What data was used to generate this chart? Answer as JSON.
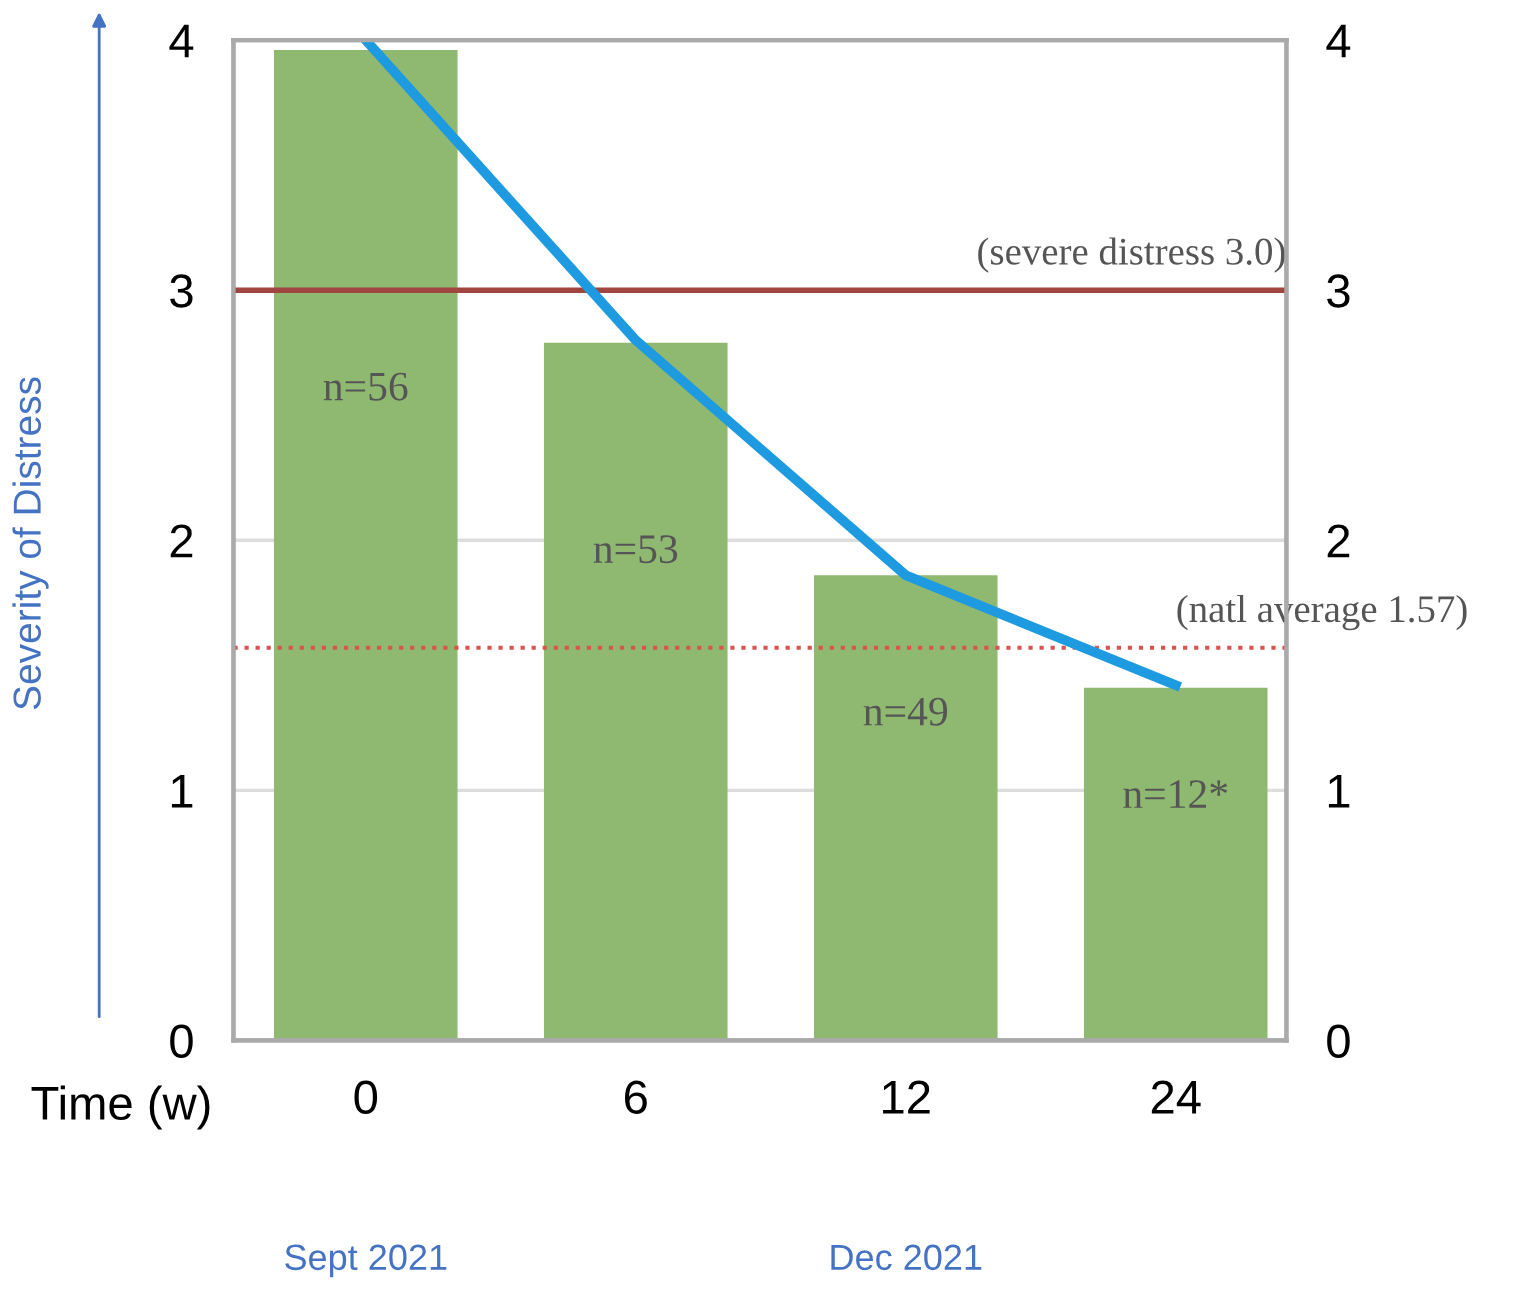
{
  "chart_data": {
    "type": "bar",
    "xlabel": "Time (w)",
    "ylabel": "Severity of Distress",
    "categories": [
      "0",
      "6",
      "12",
      "24"
    ],
    "series": [
      {
        "color": "#8fb870",
        "values": [
          3.96,
          2.79,
          1.86,
          1.41
        ]
      },
      {
        "type": "line",
        "color": "#1e9be0",
        "values": [
          4.0,
          2.8,
          1.86,
          1.42
        ],
        "marker": "none",
        "line_style": "solid"
      }
    ],
    "ylim": [
      0,
      4
    ],
    "yticks": [
      0,
      1,
      2,
      3,
      4
    ],
    "y2lim": [
      0,
      4
    ],
    "y2ticks": [
      0,
      1,
      2,
      3,
      4
    ],
    "grid": "y",
    "ref_lines": [
      {
        "axis": "y",
        "value": 3.0,
        "label": "(severe distress 3.0)",
        "color": "#a0453f",
        "line_style": "solid"
      },
      {
        "axis": "y",
        "value": 1.57,
        "label": "(natl average 1.57)",
        "color": "#d9534f",
        "line_style": "dotted"
      }
    ],
    "annotations": [
      "n=56",
      "n=53",
      "n=49",
      "n=12*",
      "Sept 2021",
      "Dec 2021"
    ]
  }
}
